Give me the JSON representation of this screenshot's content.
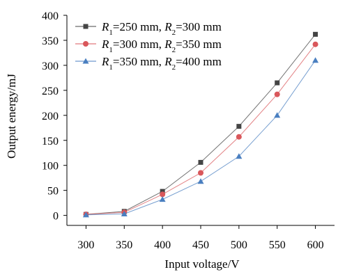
{
  "chart_data": {
    "type": "line",
    "xlabel": "Input voltage/V",
    "ylabel": "Output energy/mJ",
    "x": [
      300,
      350,
      400,
      450,
      500,
      550,
      600
    ],
    "xlim": [
      275,
      625
    ],
    "ylim": [
      -20,
      400
    ],
    "yticks": [
      0,
      50,
      100,
      150,
      200,
      250,
      300,
      350,
      400
    ],
    "grid": false,
    "legend_position": "top-left",
    "series": [
      {
        "legend": {
          "r1_sym": "R",
          "r1_sub": "1",
          "r1_val": "=250 mm, ",
          "r2_sym": "R",
          "r2_sub": "2",
          "r2_val": "=300 mm"
        },
        "values": [
          2,
          8,
          48,
          106,
          178,
          265,
          362
        ],
        "color": "#444444",
        "marker": "square"
      },
      {
        "legend": {
          "r1_sym": "R",
          "r1_sub": "1",
          "r1_val": "=300 mm, ",
          "r2_sym": "R",
          "r2_sub": "2",
          "r2_val": "=350 mm"
        },
        "values": [
          2,
          6,
          42,
          85,
          157,
          242,
          342
        ],
        "color": "#d9575b",
        "marker": "circle"
      },
      {
        "legend": {
          "r1_sym": "R",
          "r1_sub": "1",
          "r1_val": "=350 mm, ",
          "r2_sym": "R",
          "r2_sub": "2",
          "r2_val": "=400 mm"
        },
        "values": [
          1,
          3,
          32,
          68,
          118,
          200,
          310
        ],
        "color": "#4a7fc0",
        "marker": "triangle"
      }
    ]
  }
}
